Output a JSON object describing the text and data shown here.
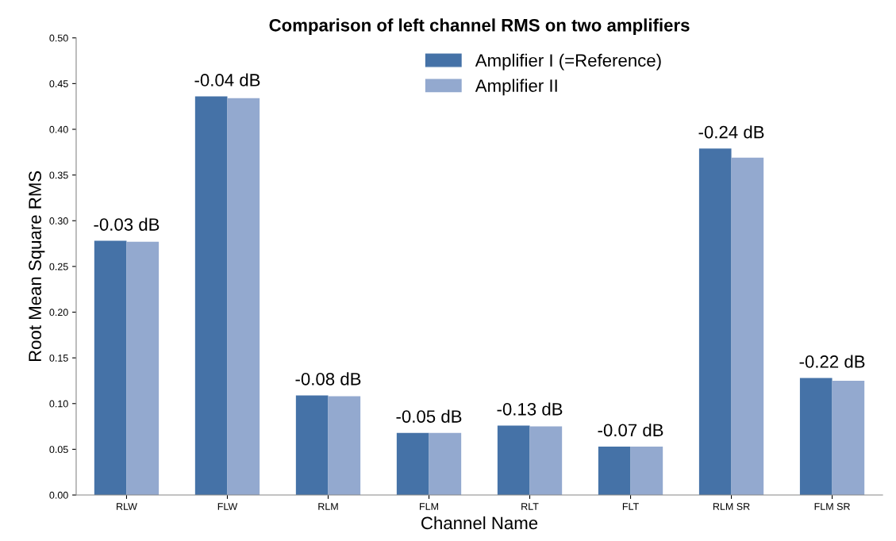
{
  "chart_data": {
    "type": "bar",
    "title": "Comparison of left channel RMS on two amplifiers",
    "xlabel": "Channel Name",
    "ylabel": "Root Mean Square RMS",
    "categories": [
      "RLW",
      "FLW",
      "RLM",
      "FLM",
      "RLT",
      "FLT",
      "RLM SR",
      "FLM SR"
    ],
    "series": [
      {
        "name": "Amplifier I (=Reference)",
        "color": "#4572a7",
        "values": [
          0.278,
          0.436,
          0.109,
          0.068,
          0.076,
          0.053,
          0.379,
          0.128
        ]
      },
      {
        "name": "Amplifier II",
        "color": "#93a9cf",
        "values": [
          0.277,
          0.434,
          0.108,
          0.068,
          0.075,
          0.053,
          0.369,
          0.125
        ]
      }
    ],
    "ylim": [
      0,
      0.5
    ],
    "yticks": [
      {
        "value": 0,
        "label": "0.00"
      },
      {
        "value": 0.05,
        "label": "0.05"
      },
      {
        "value": 0.1,
        "label": "0.10"
      },
      {
        "value": 0.15,
        "label": "0.15"
      },
      {
        "value": 0.2,
        "label": "0.20"
      },
      {
        "value": 0.25,
        "label": "0.25"
      },
      {
        "value": 0.3,
        "label": "0.30"
      },
      {
        "value": 0.35,
        "label": "0.35"
      },
      {
        "value": 0.4,
        "label": "0.40"
      },
      {
        "value": 0.45,
        "label": "0.45"
      },
      {
        "value": 0.5,
        "label": "0.50"
      }
    ],
    "annotations": [
      {
        "text": "-0.03 dB",
        "x": "RLW",
        "y": 0.278
      },
      {
        "text": "-0.04 dB",
        "x": "FLW",
        "y": 0.436
      },
      {
        "text": "-0.08 dB",
        "x": "RLM",
        "y": 0.109
      },
      {
        "text": "-0.05 dB",
        "x": "FLM",
        "y": 0.068
      },
      {
        "text": "-0.13 dB",
        "x": "RLT",
        "y": 0.076
      },
      {
        "text": "-0.07 dB",
        "x": "FLT",
        "y": 0.053
      },
      {
        "text": "-0.24 dB",
        "x": "RLM SR",
        "y": 0.379
      },
      {
        "text": "-0.22 dB",
        "x": "FLM SR",
        "y": 0.128
      }
    ],
    "legend": "top",
    "grid": false
  }
}
